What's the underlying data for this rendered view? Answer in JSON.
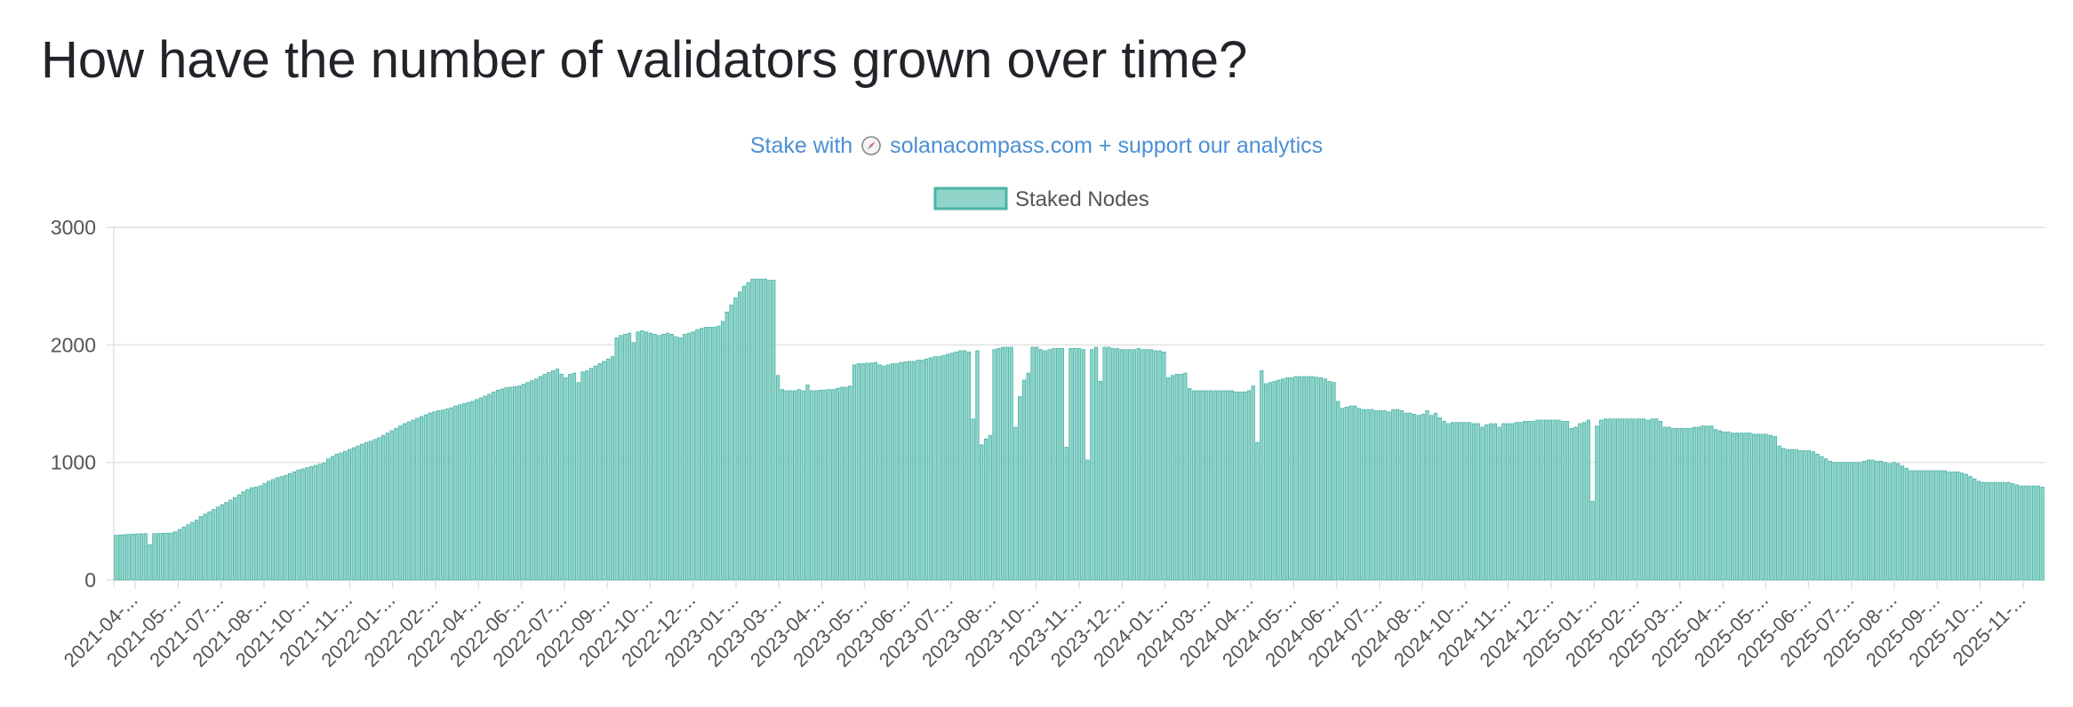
{
  "page": {
    "title": "How have the number of validators grown over time?"
  },
  "promo": {
    "prefix": "Stake with",
    "icon": "compass-icon",
    "link_text": "solanacompass.com + support our analytics"
  },
  "colors": {
    "bar_fill": "#8fd3c9",
    "bar_stroke": "#49b3a6",
    "grid": "#e2e2e2",
    "axis_text": "#555555",
    "link": "#4a8fd4"
  },
  "chart_data": {
    "type": "bar",
    "title": "",
    "xlabel": "",
    "ylabel": "",
    "legend": {
      "position": "top-center",
      "entries": [
        "Staked Nodes"
      ]
    },
    "grid": true,
    "ylim": [
      0,
      3000
    ],
    "yticks": [
      0,
      1000,
      2000,
      3000
    ],
    "x_tick_labels": [
      "2021-04-...",
      "2021-05-...",
      "2021-07-...",
      "2021-08-...",
      "2021-10-...",
      "2021-11-...",
      "2022-01-...",
      "2022-02-...",
      "2022-04-...",
      "2022-06-...",
      "2022-07-...",
      "2022-09-...",
      "2022-10-...",
      "2022-12-...",
      "2023-01-...",
      "2023-03-...",
      "2023-04-...",
      "2023-05-...",
      "2023-06-...",
      "2023-07-...",
      "2023-08-...",
      "2023-10-...",
      "2023-11-...",
      "2023-12-...",
      "2024-01-...",
      "2024-03-...",
      "2024-04-...",
      "2024-05-...",
      "2024-06-...",
      "2024-07-...",
      "2024-08-...",
      "2024-10-...",
      "2024-11-...",
      "2024-12-...",
      "2025-01-...",
      "2025-02-...",
      "2025-03-...",
      "2025-04-...",
      "2025-05-...",
      "2025-06-...",
      "2025-07-...",
      "2025-08-...",
      "2025-09-...",
      "2025-10-...",
      "2025-11-..."
    ],
    "series": [
      {
        "name": "Staked Nodes",
        "values": [
          380,
          383,
          385,
          388,
          390,
          392,
          393,
          394,
          300,
          395,
          396,
          397,
          398,
          400,
          410,
          430,
          450,
          470,
          490,
          510,
          540,
          560,
          580,
          600,
          620,
          640,
          660,
          680,
          700,
          725,
          750,
          770,
          785,
          790,
          800,
          820,
          840,
          855,
          870,
          880,
          890,
          905,
          920,
          935,
          945,
          955,
          965,
          975,
          985,
          995,
          1030,
          1050,
          1070,
          1080,
          1095,
          1110,
          1125,
          1140,
          1155,
          1170,
          1180,
          1195,
          1210,
          1230,
          1250,
          1270,
          1290,
          1310,
          1330,
          1345,
          1360,
          1375,
          1390,
          1405,
          1420,
          1430,
          1440,
          1445,
          1455,
          1465,
          1480,
          1490,
          1500,
          1510,
          1520,
          1535,
          1550,
          1565,
          1580,
          1600,
          1615,
          1625,
          1635,
          1640,
          1645,
          1650,
          1665,
          1680,
          1695,
          1710,
          1730,
          1750,
          1765,
          1780,
          1795,
          1750,
          1720,
          1750,
          1760,
          1680,
          1770,
          1780,
          1800,
          1820,
          1840,
          1860,
          1880,
          1900,
          2060,
          2080,
          2090,
          2100,
          2020,
          2110,
          2120,
          2110,
          2100,
          2090,
          2080,
          2090,
          2100,
          2090,
          2070,
          2060,
          2090,
          2100,
          2110,
          2130,
          2140,
          2150,
          2150,
          2150,
          2160,
          2200,
          2280,
          2340,
          2400,
          2450,
          2500,
          2530,
          2560,
          2560,
          2560,
          2560,
          2550,
          2550,
          1740,
          1620,
          1610,
          1610,
          1610,
          1620,
          1610,
          1660,
          1610,
          1610,
          1615,
          1615,
          1620,
          1620,
          1630,
          1640,
          1640,
          1650,
          1830,
          1840,
          1840,
          1845,
          1845,
          1850,
          1830,
          1820,
          1830,
          1840,
          1840,
          1850,
          1855,
          1860,
          1860,
          1870,
          1870,
          1880,
          1890,
          1900,
          1900,
          1910,
          1920,
          1930,
          1940,
          1950,
          1950,
          1940,
          1370,
          1950,
          1150,
          1200,
          1230,
          1960,
          1970,
          1980,
          1980,
          1980,
          1300,
          1560,
          1700,
          1760,
          1980,
          1980,
          1960,
          1950,
          1960,
          1970,
          1970,
          1970,
          1130,
          1970,
          1970,
          1970,
          1960,
          1020,
          1960,
          1980,
          1690,
          1980,
          1980,
          1970,
          1970,
          1960,
          1960,
          1960,
          1960,
          1970,
          1960,
          1960,
          1960,
          1950,
          1950,
          1940,
          1720,
          1740,
          1750,
          1750,
          1760,
          1630,
          1610,
          1610,
          1610,
          1610,
          1610,
          1610,
          1610,
          1610,
          1610,
          1610,
          1600,
          1600,
          1600,
          1610,
          1650,
          1170,
          1780,
          1670,
          1680,
          1690,
          1700,
          1710,
          1720,
          1720,
          1730,
          1730,
          1730,
          1730,
          1730,
          1725,
          1720,
          1710,
          1690,
          1680,
          1520,
          1460,
          1470,
          1480,
          1480,
          1460,
          1450,
          1450,
          1450,
          1440,
          1440,
          1440,
          1430,
          1450,
          1450,
          1440,
          1420,
          1420,
          1410,
          1400,
          1410,
          1440,
          1400,
          1420,
          1380,
          1350,
          1330,
          1340,
          1340,
          1340,
          1340,
          1340,
          1330,
          1330,
          1300,
          1320,
          1330,
          1330,
          1300,
          1330,
          1330,
          1330,
          1340,
          1340,
          1350,
          1350,
          1350,
          1360,
          1360,
          1360,
          1360,
          1360,
          1360,
          1350,
          1350,
          1290,
          1300,
          1330,
          1340,
          1360,
          670,
          1310,
          1360,
          1370,
          1370,
          1370,
          1370,
          1370,
          1370,
          1370,
          1370,
          1370,
          1370,
          1360,
          1370,
          1370,
          1350,
          1300,
          1300,
          1290,
          1290,
          1290,
          1290,
          1290,
          1300,
          1300,
          1310,
          1310,
          1310,
          1280,
          1270,
          1260,
          1260,
          1250,
          1250,
          1250,
          1250,
          1250,
          1240,
          1240,
          1240,
          1240,
          1230,
          1220,
          1140,
          1120,
          1110,
          1110,
          1110,
          1100,
          1100,
          1100,
          1090,
          1070,
          1050,
          1030,
          1010,
          1000,
          1000,
          1000,
          1000,
          1000,
          1000,
          1000,
          1010,
          1020,
          1020,
          1010,
          1010,
          1000,
          990,
          1000,
          990,
          970,
          950,
          930,
          930,
          930,
          930,
          930,
          930,
          930,
          930,
          930,
          920,
          920,
          920,
          910,
          900,
          880,
          860,
          840,
          830,
          830,
          830,
          830,
          830,
          830,
          830,
          820,
          810,
          800,
          800,
          800,
          800,
          800,
          790
        ]
      }
    ]
  }
}
